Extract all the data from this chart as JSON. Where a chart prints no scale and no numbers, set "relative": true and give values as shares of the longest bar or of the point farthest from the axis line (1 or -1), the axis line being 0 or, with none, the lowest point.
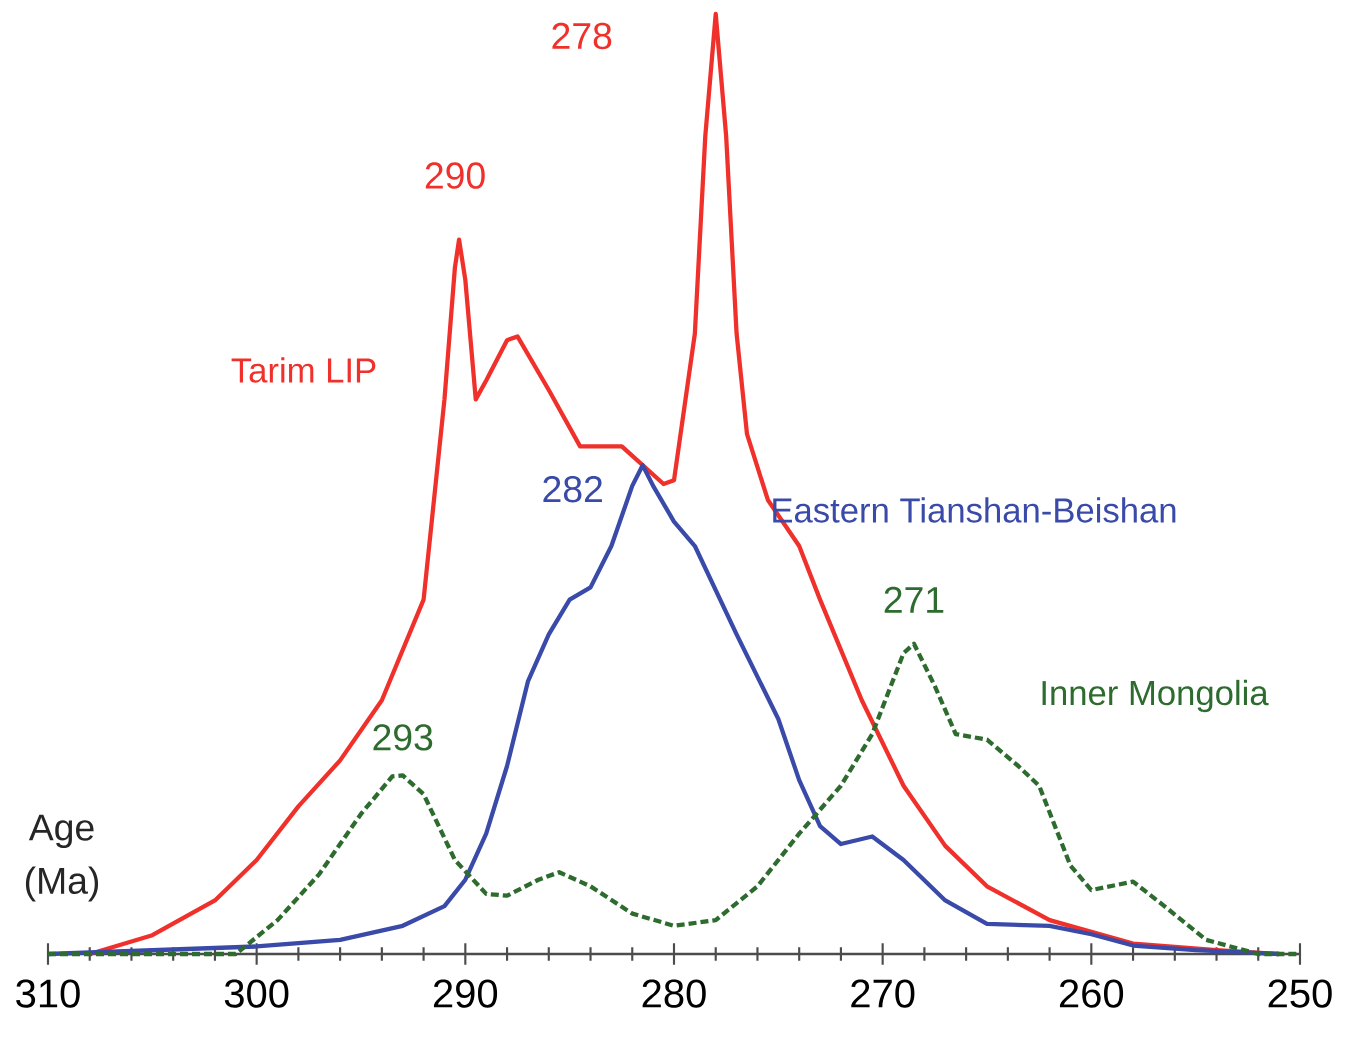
{
  "chart_data": {
    "type": "line",
    "relative": true,
    "xlabel": "Age (Ma)",
    "xlim": [
      310,
      250
    ],
    "xticks": [
      310,
      300,
      290,
      280,
      270,
      260,
      250
    ],
    "legend": false,
    "marker": "none",
    "annotations": [
      {
        "text": "290",
        "x": 290.3,
        "y": 0.76
      },
      {
        "text": "278",
        "x": 278,
        "y": 1.0
      },
      {
        "text": "282",
        "x": 281.5,
        "y": 0.52
      },
      {
        "text": "293",
        "x": 293,
        "y": 0.19
      },
      {
        "text": "271",
        "x": 268.5,
        "y": 0.33
      }
    ],
    "series": [
      {
        "name": "Tarim LIP",
        "color": "#f0302a",
        "line_style": "solid",
        "x": [
          308,
          305,
          302,
          300,
          298,
          296,
          294,
          292,
          291,
          290.5,
          290.3,
          290,
          289.5,
          289,
          288,
          287.5,
          286,
          284.5,
          283,
          282.5,
          281.5,
          280.5,
          280,
          279,
          278.5,
          278,
          277.5,
          277,
          276.5,
          275.5,
          274,
          273,
          271,
          269,
          267,
          265,
          262,
          258,
          254,
          251
        ],
        "values": [
          0,
          0.02,
          0.057,
          0.1,
          0.157,
          0.206,
          0.27,
          0.377,
          0.59,
          0.73,
          0.76,
          0.717,
          0.59,
          0.61,
          0.653,
          0.657,
          0.6,
          0.54,
          0.54,
          0.54,
          0.52,
          0.5,
          0.504,
          0.66,
          0.87,
          1.0,
          0.87,
          0.66,
          0.553,
          0.483,
          0.434,
          0.377,
          0.27,
          0.179,
          0.115,
          0.072,
          0.036,
          0.011,
          0.004,
          0
        ]
      },
      {
        "name": "Eastern Tianshan-Beishan",
        "color": "#3a4aa8",
        "line_style": "solid",
        "x": [
          310,
          300,
          296,
          293,
          291,
          290,
          289,
          288,
          287,
          286,
          285,
          284,
          283,
          282,
          281.5,
          281,
          280,
          279,
          277,
          275,
          274,
          273,
          272,
          270.5,
          269,
          267,
          265,
          262,
          260,
          258,
          255,
          251
        ],
        "values": [
          0,
          0.008,
          0.015,
          0.03,
          0.051,
          0.079,
          0.128,
          0.2,
          0.29,
          0.34,
          0.377,
          0.39,
          0.434,
          0.498,
          0.52,
          0.498,
          0.46,
          0.434,
          0.34,
          0.25,
          0.185,
          0.136,
          0.117,
          0.125,
          0.1,
          0.057,
          0.032,
          0.03,
          0.021,
          0.009,
          0.004,
          0
        ]
      },
      {
        "name": "Inner Mongolia",
        "color": "#2e6b2e",
        "line_style": "dashed",
        "x": [
          310,
          301,
          299,
          297,
          295,
          293.5,
          293,
          292,
          290.5,
          289,
          288,
          286.5,
          285.5,
          284,
          282,
          280,
          278,
          276,
          274,
          272,
          270.5,
          269,
          268.5,
          267.5,
          266.5,
          265,
          263.5,
          262.5,
          261,
          260,
          258,
          256.5,
          254.5,
          252,
          250
        ],
        "values": [
          0,
          0,
          0.036,
          0.085,
          0.149,
          0.189,
          0.19,
          0.17,
          0.1,
          0.064,
          0.062,
          0.079,
          0.087,
          0.072,
          0.043,
          0.03,
          0.036,
          0.072,
          0.128,
          0.179,
          0.234,
          0.32,
          0.33,
          0.285,
          0.234,
          0.228,
          0.2,
          0.179,
          0.094,
          0.068,
          0.077,
          0.051,
          0.015,
          0,
          0
        ]
      }
    ]
  }
}
